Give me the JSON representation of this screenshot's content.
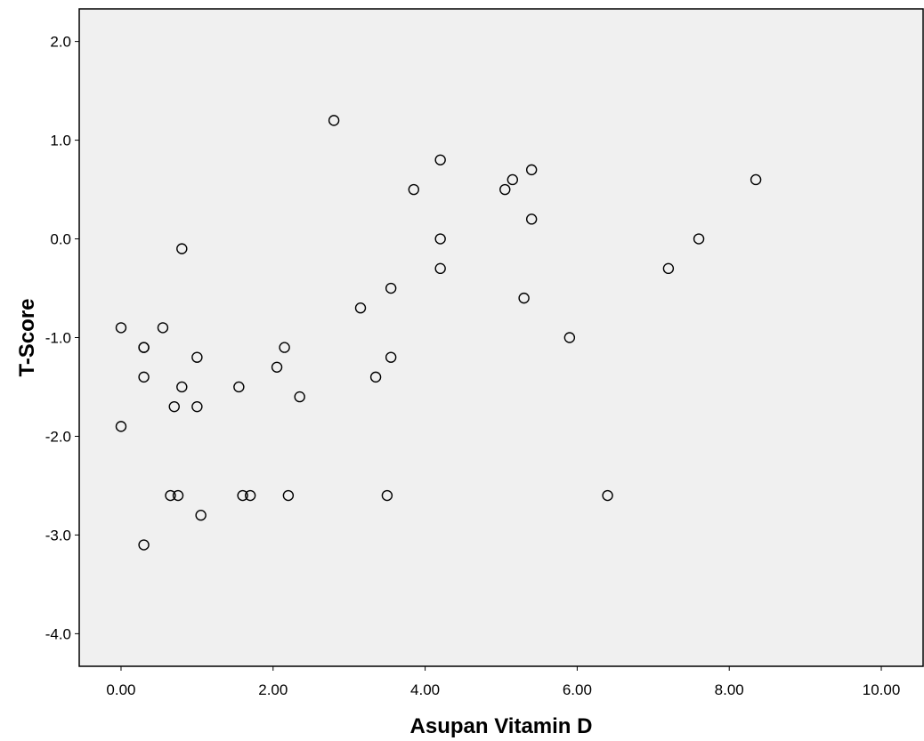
{
  "chart_data": {
    "type": "scatter",
    "title": "",
    "xlabel": "Asupan Vitamin D",
    "ylabel": "T-Score",
    "xlim": [
      -0.55,
      10.55
    ],
    "ylim": [
      -4.33,
      2.33
    ],
    "xticks": [
      0,
      2,
      4,
      6,
      8,
      10
    ],
    "xtick_labels": [
      "0.00",
      "2.00",
      "4.00",
      "6.00",
      "8.00",
      "10.00"
    ],
    "yticks": [
      2,
      1,
      0,
      -1,
      -2,
      -3,
      -4
    ],
    "ytick_labels": [
      "2.0",
      "1.0",
      "0.0",
      "-1.0",
      "-2.0",
      "-3.0",
      "-4.0"
    ],
    "grid": false,
    "legend": "none",
    "colors": {
      "plot_background": "#f0f0f0",
      "marker_stroke": "#000000",
      "axis": "#000000"
    },
    "points": [
      {
        "x": 0.0,
        "y": -0.9
      },
      {
        "x": 0.0,
        "y": -1.9
      },
      {
        "x": 0.3,
        "y": -1.1
      },
      {
        "x": 0.3,
        "y": -1.1
      },
      {
        "x": 0.3,
        "y": -1.4
      },
      {
        "x": 0.3,
        "y": -3.1
      },
      {
        "x": 0.55,
        "y": -0.9
      },
      {
        "x": 0.65,
        "y": -2.6
      },
      {
        "x": 0.7,
        "y": -1.7
      },
      {
        "x": 0.75,
        "y": -2.6
      },
      {
        "x": 0.8,
        "y": -0.1
      },
      {
        "x": 0.8,
        "y": -1.5
      },
      {
        "x": 1.0,
        "y": -1.2
      },
      {
        "x": 1.0,
        "y": -1.7
      },
      {
        "x": 1.05,
        "y": -2.8
      },
      {
        "x": 1.55,
        "y": -1.5
      },
      {
        "x": 1.6,
        "y": -2.6
      },
      {
        "x": 1.7,
        "y": -2.6
      },
      {
        "x": 2.05,
        "y": -1.3
      },
      {
        "x": 2.15,
        "y": -1.1
      },
      {
        "x": 2.2,
        "y": -2.6
      },
      {
        "x": 2.35,
        "y": -1.6
      },
      {
        "x": 2.8,
        "y": 1.2
      },
      {
        "x": 3.15,
        "y": -0.7
      },
      {
        "x": 3.35,
        "y": -1.4
      },
      {
        "x": 3.5,
        "y": -2.6
      },
      {
        "x": 3.55,
        "y": -0.5
      },
      {
        "x": 3.55,
        "y": -1.2
      },
      {
        "x": 3.85,
        "y": 0.5
      },
      {
        "x": 4.2,
        "y": 0.8
      },
      {
        "x": 4.2,
        "y": 0.0
      },
      {
        "x": 4.2,
        "y": -0.3
      },
      {
        "x": 5.05,
        "y": 0.5
      },
      {
        "x": 5.15,
        "y": 0.6
      },
      {
        "x": 5.3,
        "y": -0.6
      },
      {
        "x": 5.4,
        "y": 0.7
      },
      {
        "x": 5.4,
        "y": 0.2
      },
      {
        "x": 5.9,
        "y": -1.0
      },
      {
        "x": 6.4,
        "y": -2.6
      },
      {
        "x": 7.2,
        "y": -0.3
      },
      {
        "x": 7.6,
        "y": 0.0
      },
      {
        "x": 8.35,
        "y": 0.6
      }
    ]
  }
}
